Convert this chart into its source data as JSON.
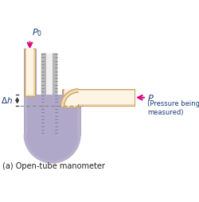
{
  "bg_color": "#ffffff",
  "tube_wall_color": "#b8b0cc",
  "tube_wall_edge": "#9890b8",
  "tube_open_fill": "#f0d8b0",
  "tube_open_wall": "#c8a060",
  "liquid_color": "#b0a8c8",
  "ruler_bg": "#cccccc",
  "ruler_line_color": "#777777",
  "arrow_color": "#dd0077",
  "label_color": "#1a3a7a",
  "dashed_color": "#888888",
  "title": "(a) Open-tube manometer",
  "p0_label": "$P_0$",
  "p_label": "$P$",
  "delta_h_label": "$\\Delta h$",
  "pressure_label": "(Pressure being\nmeasured)",
  "figw": 2.51,
  "figh": 2.54,
  "dpi": 100
}
